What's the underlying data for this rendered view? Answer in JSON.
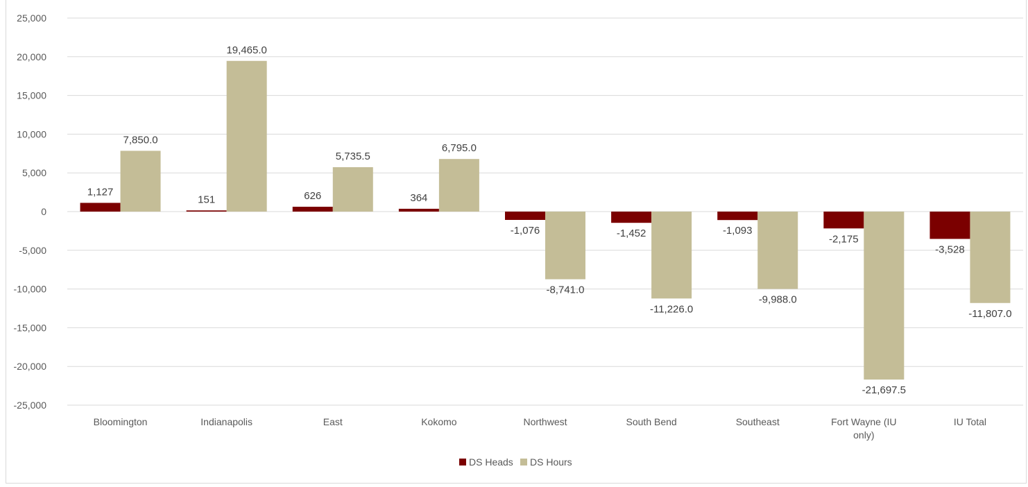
{
  "chart_data": {
    "type": "bar",
    "title": "",
    "xlabel": "",
    "ylabel": "",
    "ylim": [
      -25000,
      25000
    ],
    "yticks": [
      -25000,
      -20000,
      -15000,
      -10000,
      -5000,
      0,
      5000,
      10000,
      15000,
      20000,
      25000
    ],
    "ytick_labels": [
      "-25,000",
      "-20,000",
      "-15,000",
      "-10,000",
      "-5,000",
      "0",
      "5,000",
      "10,000",
      "15,000",
      "20,000",
      "25,000"
    ],
    "grid": true,
    "legend_position": "bottom",
    "categories": [
      [
        "Bloomington"
      ],
      [
        "Indianapolis"
      ],
      [
        "East"
      ],
      [
        "Kokomo"
      ],
      [
        "Northwest"
      ],
      [
        "South Bend"
      ],
      [
        "Southeast"
      ],
      [
        "Fort Wayne (IU",
        "only)"
      ],
      [
        "IU Total"
      ]
    ],
    "series": [
      {
        "name": "DS Heads",
        "color": "#7b0000",
        "values": [
          1127,
          151,
          626,
          364,
          -1076,
          -1452,
          -1093,
          -2175,
          -3528
        ],
        "labels": [
          "1,127",
          "151",
          "626",
          "364",
          "-1,076",
          "-1,452",
          "-1,093",
          "-2,175",
          "-3,528"
        ]
      },
      {
        "name": "DS Hours",
        "color": "#c4bd97",
        "values": [
          7850.0,
          19465.0,
          5735.5,
          6795.0,
          -8741.0,
          -11226.0,
          -9988.0,
          -21697.5,
          -11807.0
        ],
        "labels": [
          "7,850.0",
          "19,465.0",
          "5,735.5",
          "6,795.0",
          "-8,741.0",
          "-11,226.0",
          "-9,988.0",
          "-21,697.5",
          "-11,807.0"
        ]
      }
    ]
  }
}
